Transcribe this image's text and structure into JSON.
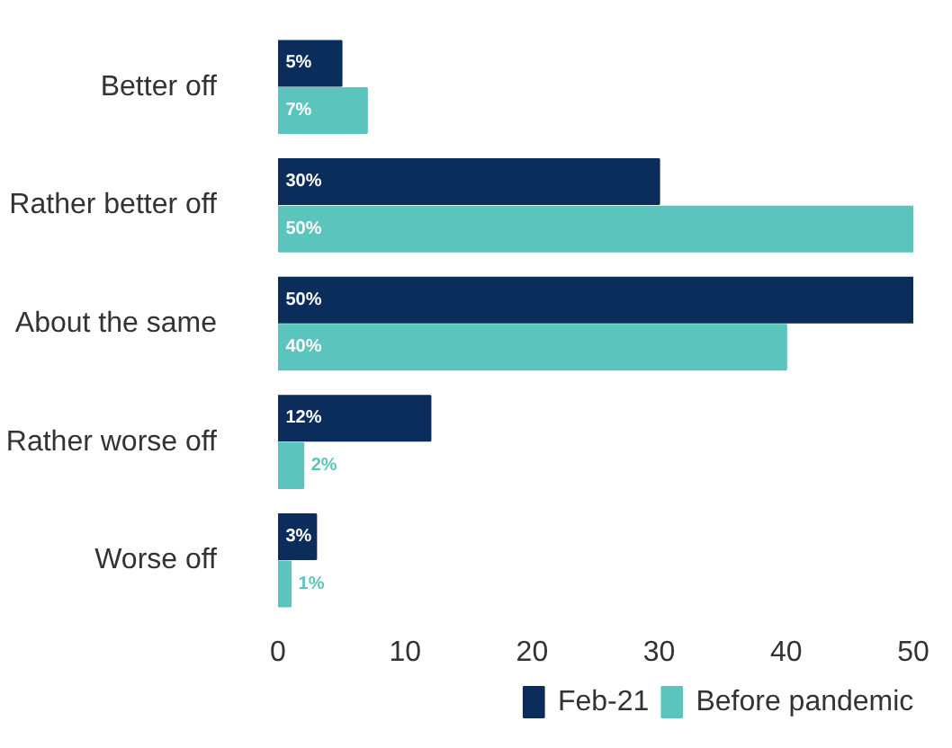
{
  "chart_data": {
    "type": "bar",
    "orientation": "horizontal",
    "categories": [
      "Better off",
      "Rather better off",
      "About the same",
      "Rather worse off",
      "Worse off"
    ],
    "series": [
      {
        "name": "Feb-21",
        "color": "#0b2d5b",
        "values": [
          5,
          30,
          50,
          12,
          3
        ],
        "value_labels": [
          "5%",
          "30%",
          "50%",
          "12%",
          "3%"
        ]
      },
      {
        "name": "Before pandemic",
        "color": "#5bc5bd",
        "values": [
          7,
          50,
          40,
          2,
          1
        ],
        "value_labels": [
          "7%",
          "50%",
          "40%",
          "2%",
          "1%"
        ]
      }
    ],
    "xlim": [
      0,
      50
    ],
    "xticks": [
      0,
      10,
      20,
      30,
      40,
      50
    ],
    "legend": "bottom"
  }
}
